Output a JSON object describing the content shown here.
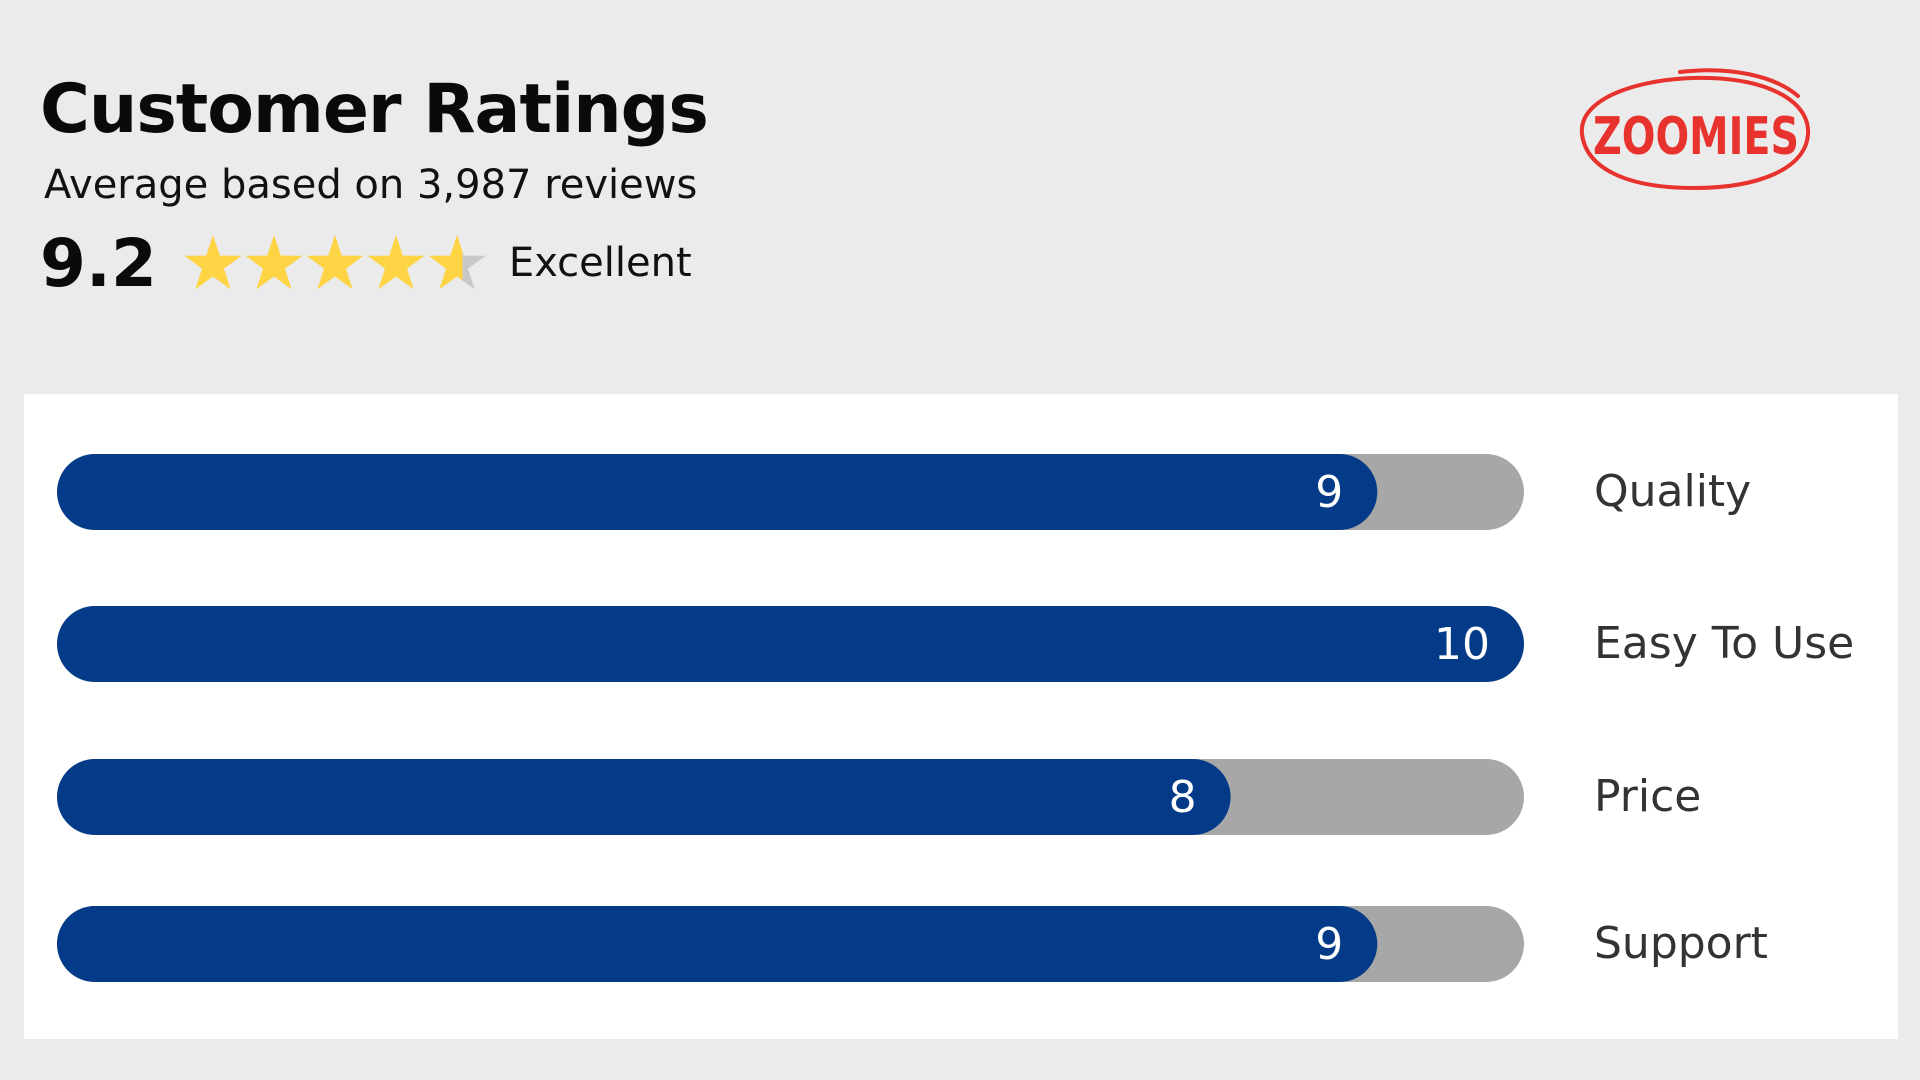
{
  "header": {
    "title": "Customer Ratings",
    "subtitle": "Average based on 3,987 reviews",
    "score": "9.2",
    "verdict": "Excellent",
    "stars_rating": 4.6,
    "stars_max": 5
  },
  "logo": {
    "text": "ZOOMIES",
    "color": "#e8322d"
  },
  "colors": {
    "bar_fill": "#033b89",
    "bar_track": "#a7a7a7",
    "star_filled": "#fed444",
    "star_empty": "#c8c8c8"
  },
  "chart_data": {
    "type": "bar",
    "orientation": "horizontal",
    "categories": [
      "Quality",
      "Easy To Use",
      "Price",
      "Support"
    ],
    "values": [
      9,
      10,
      8,
      9
    ],
    "value_labels": [
      "9",
      "10",
      "8",
      "9"
    ],
    "xlim": [
      0,
      10
    ],
    "grid": false
  }
}
